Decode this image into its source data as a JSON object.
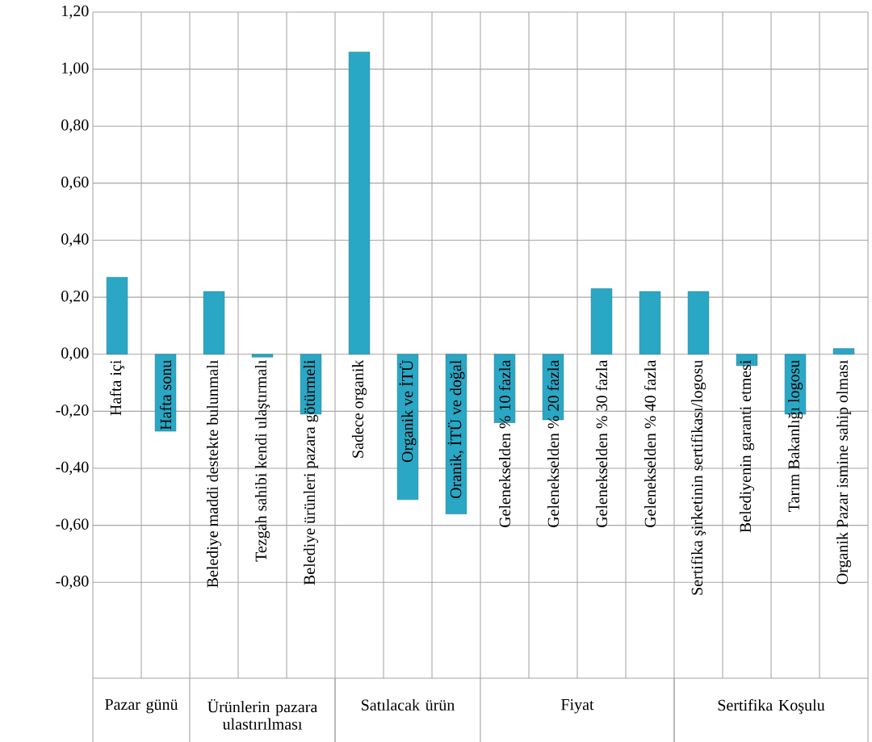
{
  "chart_data": {
    "type": "bar",
    "categories": [
      "Hafta içi",
      "Hafta sonu",
      "Belediye maddi destekte bulunmalı",
      "Tezgah sahibi kendi ulaştırmalı",
      "Belediye ürünleri pazara götürmeli",
      "Sadece organik",
      "Organik ve İTÜ",
      "Oranik, İTÜ ve doğal",
      "Gelenekselden % 10 fazla",
      "Gelenekselden % 20 fazla",
      "Gelenekselden % 30 fazla",
      "Gelenekselden % 40 fazla",
      "Sertifika şirketinin sertifikası/logosu",
      "Belediyenin  garanti etmesi",
      "Tarım Bakanlığı logosu",
      "Organik Pazar ismine sahip olması"
    ],
    "values": [
      0.27,
      -0.27,
      0.22,
      -0.01,
      -0.21,
      1.06,
      -0.51,
      -0.56,
      -0.24,
      -0.23,
      0.23,
      0.22,
      0.22,
      -0.04,
      -0.21,
      0.02
    ],
    "color": "#2aa7c4",
    "ylim": [
      -1.36,
      1.2
    ],
    "yticks": [
      {
        "value": -0.8,
        "label": "-0,80"
      },
      {
        "value": -0.6,
        "label": "-0,60"
      },
      {
        "value": -0.4,
        "label": "-0,40"
      },
      {
        "value": -0.2,
        "label": "-0,20"
      },
      {
        "value": 0,
        "label": "0,00"
      },
      {
        "value": 0.2,
        "label": "0,20"
      },
      {
        "value": 0.4,
        "label": "0,40"
      },
      {
        "value": 0.6,
        "label": "0,60"
      },
      {
        "value": 0.8,
        "label": "0,80"
      },
      {
        "value": 1.0,
        "label": "1,00"
      },
      {
        "value": 1.2,
        "label": "1,20"
      }
    ],
    "grid": true,
    "annotations": [
      "Pazar günü",
      "Ürünlerin pazara ulastırılması",
      "Satılacak ürün",
      "Fiyat",
      "Sertifika Koşulu"
    ]
  }
}
